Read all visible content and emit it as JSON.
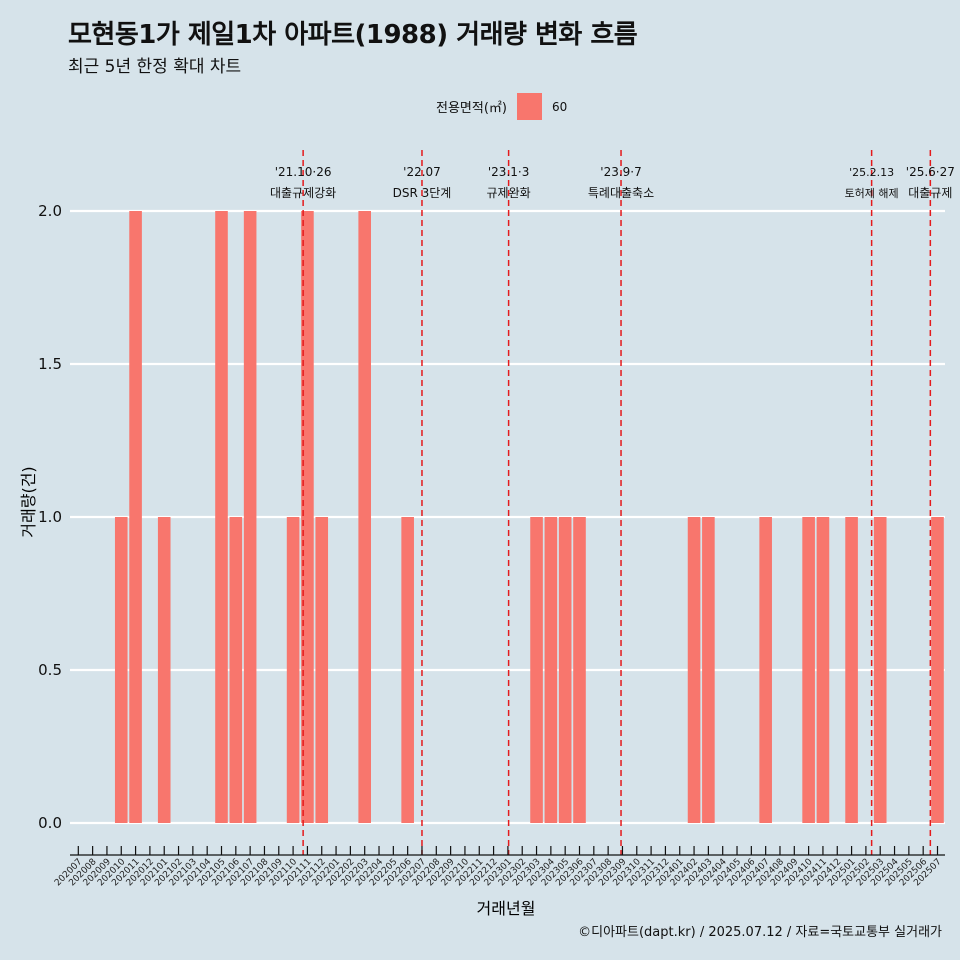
{
  "title": "모현동1가 제일1차 아파트(1988) 거래량 변화 흐름",
  "subtitle": "최근 5년 한정 확대 차트",
  "legend": {
    "title": "전용면적(㎡)",
    "label": "60",
    "color": "#f8766d"
  },
  "caption": "©디아파트(dapt.kr) / 2025.07.12 / 자료=국토교통부 실거래가",
  "colors": {
    "background": "#d6e3ea",
    "bar": "#f8766d",
    "gridline": "#ffffff",
    "event_line": "#e41a1c"
  },
  "chart_data": {
    "type": "bar",
    "xlabel": "거래년월",
    "ylabel": "거래량(건)",
    "ylim": [
      0,
      2.0
    ],
    "yticks": [
      "0.0",
      "0.5",
      "1.0",
      "1.5",
      "2.0"
    ],
    "grid": "horizontal",
    "legend_position": "top",
    "categories": [
      "202007",
      "202008",
      "202009",
      "202010",
      "202011",
      "202012",
      "202101",
      "202102",
      "202103",
      "202104",
      "202105",
      "202106",
      "202107",
      "202108",
      "202109",
      "202110",
      "202111",
      "202112",
      "202201",
      "202202",
      "202203",
      "202204",
      "202205",
      "202206",
      "202207",
      "202208",
      "202209",
      "202210",
      "202211",
      "202212",
      "202301",
      "202302",
      "202303",
      "202304",
      "202305",
      "202306",
      "202307",
      "202308",
      "202309",
      "202310",
      "202311",
      "202312",
      "202401",
      "202402",
      "202403",
      "202404",
      "202405",
      "202406",
      "202407",
      "202408",
      "202409",
      "202410",
      "202411",
      "202412",
      "202501",
      "202502",
      "202503",
      "202504",
      "202505",
      "202506",
      "202507"
    ],
    "series": [
      {
        "name": "60",
        "values": [
          0,
          0,
          0,
          1,
          2,
          0,
          1,
          0,
          0,
          0,
          2,
          1,
          2,
          0,
          0,
          1,
          2,
          1,
          0,
          0,
          2,
          0,
          0,
          1,
          0,
          0,
          0,
          0,
          0,
          0,
          0,
          0,
          1,
          1,
          1,
          1,
          0,
          0,
          0,
          0,
          0,
          0,
          0,
          1,
          1,
          0,
          0,
          0,
          1,
          0,
          0,
          1,
          1,
          0,
          1,
          0,
          1,
          0,
          0,
          0,
          1
        ]
      }
    ],
    "annotations": [
      {
        "category": "202110",
        "date": "'21.10·26",
        "label": "대출규제강화"
      },
      {
        "category": "202207",
        "date": "'22.07",
        "label": "DSR 3단계"
      },
      {
        "category": "202301",
        "date": "'23.1·3",
        "label": "규제완화"
      },
      {
        "category": "202309",
        "date": "'23.9·7",
        "label": "특례대출축소"
      },
      {
        "category": "202502",
        "date": "'25.2.13",
        "label": "토허제 해제"
      },
      {
        "category": "202506",
        "date": "'25.6·27",
        "label": "대출규제"
      }
    ]
  }
}
